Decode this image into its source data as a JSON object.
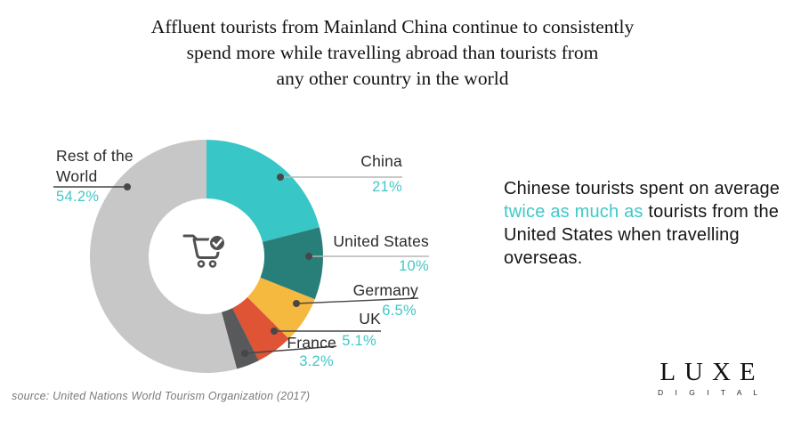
{
  "title": {
    "lines": [
      "Affluent tourists from Mainland China continue to consistently",
      "spend more while travelling abroad than tourists from",
      "any other country in the world"
    ]
  },
  "chart_data": {
    "type": "pie",
    "subtype": "donut",
    "title": "Share of international tourism spending by country of origin",
    "start_angle_deg": -90,
    "direction": "clockwise",
    "center_icon": "shopping-cart-check-icon",
    "legend_position": "callout-labels",
    "segments": [
      {
        "label": "China",
        "value": 21,
        "pct_label": "21%",
        "color": "#38C7C6"
      },
      {
        "label": "United States",
        "value": 10,
        "pct_label": "10%",
        "color": "#287F79"
      },
      {
        "label": "Germany",
        "value": 6.5,
        "pct_label": "6.5%",
        "color": "#F6B93F"
      },
      {
        "label": "UK",
        "value": 5.1,
        "pct_label": "5.1%",
        "color": "#DE5434"
      },
      {
        "label": "France",
        "value": 3.2,
        "pct_label": "3.2%",
        "color": "#58595B"
      },
      {
        "label": "Rest of the World",
        "value": 54.2,
        "pct_label": "54.2%",
        "color": "#C6C7C6"
      }
    ]
  },
  "callout": {
    "before": "Chinese tourists spent on average ",
    "highlight": "twice as much as",
    "after": " tourists from the United States when travelling overseas.",
    "highlight_color": "#3FC8C8"
  },
  "source": {
    "text": "source: United Nations World Tourism Organization (2017)"
  },
  "brand": {
    "name": "LUXE",
    "tagline": "D I G I T A L"
  },
  "colors": {
    "accent_teal": "#45C6C6",
    "label_text": "#2a2a2a",
    "leader_dark": "#474747",
    "leader_light": "#b5b5b5",
    "cart_icon": "#515151"
  }
}
